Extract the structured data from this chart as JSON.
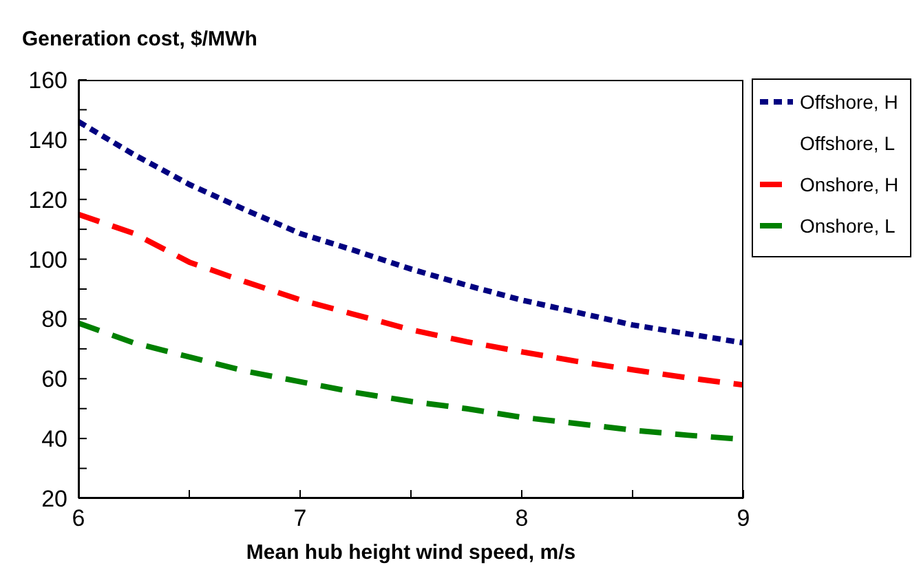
{
  "chart_data": {
    "type": "line",
    "title": "Generation cost, $/MWh",
    "xlabel": "Mean hub height wind speed, m/s",
    "x": [
      6,
      6.25,
      6.5,
      6.75,
      7,
      7.25,
      7.5,
      7.75,
      8,
      8.25,
      8.5,
      8.75,
      9
    ],
    "series": [
      {
        "name": "Offshore, H",
        "color": "#000080",
        "line_style": "dotted",
        "values": [
          146,
          135,
          125,
          116.6,
          108.6,
          102.8,
          96.7,
          91.3,
          86.3,
          82.2,
          78,
          75,
          72
        ]
      },
      {
        "name": "Offshore, L",
        "values": [
          null,
          null,
          null,
          null,
          null,
          null,
          null,
          null,
          null,
          null,
          null,
          null,
          null
        ]
      },
      {
        "name": "Onshore, H",
        "color": "#ff0000",
        "line_style": "dashed",
        "values": [
          115,
          108.6,
          99,
          92.5,
          86.4,
          81.4,
          76.4,
          72.4,
          69,
          65.8,
          63,
          60.3,
          57.9
        ]
      },
      {
        "name": "Onshore, L",
        "color": "#008000",
        "line_style": "dashed",
        "values": [
          78.6,
          72,
          67.3,
          62.6,
          59,
          55.4,
          52.4,
          50,
          47.1,
          45,
          42.8,
          41.1,
          39.7
        ]
      }
    ],
    "xlim": [
      6,
      9
    ],
    "xticks": [
      6,
      {
        "value": 6.5,
        "label": null
      },
      7,
      {
        "value": 7.5,
        "label": null
      },
      8,
      {
        "value": 8.5,
        "label": null
      },
      9
    ],
    "ylim": [
      20,
      160
    ],
    "yticks": [
      20,
      {
        "value": 30,
        "label": null
      },
      40,
      {
        "value": 50,
        "label": null
      },
      60,
      {
        "value": 70,
        "label": null
      },
      80,
      {
        "value": 90,
        "label": null
      },
      100,
      {
        "value": 110,
        "label": null
      },
      120,
      {
        "value": 130,
        "label": null
      },
      140,
      {
        "value": 150,
        "label": null
      },
      160
    ],
    "grid": false,
    "legend": "right",
    "marker": "none"
  }
}
